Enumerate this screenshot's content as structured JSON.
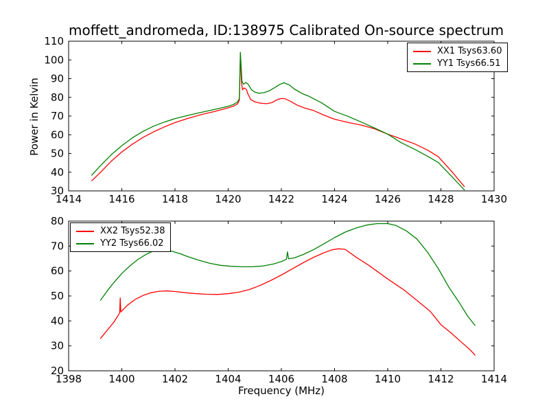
{
  "title": "moffett_andromeda, ID:138975 Calibrated On-source spectrum",
  "colors": {
    "xx_line": "#ff0000",
    "yy_line": "#008000",
    "frame": "#000000",
    "background": "#ffffff"
  },
  "chart_data": [
    {
      "type": "line",
      "title": "",
      "xlabel": "",
      "ylabel": "Power in Kelvin",
      "xlim": [
        1414,
        1430
      ],
      "ylim": [
        30,
        110
      ],
      "xticks": [
        1414,
        1416,
        1418,
        1420,
        1422,
        1424,
        1426,
        1428,
        1430
      ],
      "yticks": [
        30,
        40,
        50,
        60,
        70,
        80,
        90,
        100,
        110
      ],
      "grid": false,
      "legend_position": "upper right",
      "series": [
        {
          "name": "XX1 Tsys63.60",
          "color": "#ff0000",
          "points": [
            [
              1414.87,
              35.4
            ],
            [
              1415.2,
              40.0
            ],
            [
              1415.6,
              45.8
            ],
            [
              1416.0,
              50.8
            ],
            [
              1416.4,
              55.0
            ],
            [
              1416.8,
              58.6
            ],
            [
              1417.2,
              61.6
            ],
            [
              1417.6,
              64.2
            ],
            [
              1418.0,
              66.5
            ],
            [
              1418.5,
              68.8
            ],
            [
              1419.0,
              70.8
            ],
            [
              1419.5,
              72.5
            ],
            [
              1420.0,
              74.4
            ],
            [
              1420.2,
              75.3
            ],
            [
              1420.35,
              76.5
            ],
            [
              1420.42,
              78.5
            ],
            [
              1420.46,
              103.5
            ],
            [
              1420.5,
              88.0
            ],
            [
              1420.54,
              84.0
            ],
            [
              1420.6,
              85.0
            ],
            [
              1420.68,
              84.3
            ],
            [
              1420.75,
              81.5
            ],
            [
              1420.85,
              78.8
            ],
            [
              1421.0,
              77.6
            ],
            [
              1421.2,
              76.9
            ],
            [
              1421.45,
              76.6
            ],
            [
              1421.65,
              77.2
            ],
            [
              1421.85,
              78.8
            ],
            [
              1422.0,
              79.4
            ],
            [
              1422.15,
              79.2
            ],
            [
              1422.35,
              77.8
            ],
            [
              1422.6,
              75.8
            ],
            [
              1422.9,
              74.2
            ],
            [
              1423.2,
              73.0
            ],
            [
              1423.6,
              70.5
            ],
            [
              1424.0,
              68.3
            ],
            [
              1424.5,
              66.6
            ],
            [
              1425.0,
              65.2
            ],
            [
              1425.5,
              63.2
            ],
            [
              1426.0,
              60.3
            ],
            [
              1426.5,
              57.8
            ],
            [
              1427.0,
              55.2
            ],
            [
              1427.5,
              51.8
            ],
            [
              1427.9,
              48.3
            ],
            [
              1428.4,
              40.5
            ],
            [
              1428.88,
              32.3
            ]
          ]
        },
        {
          "name": "YY1 Tsys66.51",
          "color": "#008000",
          "points": [
            [
              1414.87,
              38.4
            ],
            [
              1415.2,
              43.5
            ],
            [
              1415.6,
              49.3
            ],
            [
              1416.0,
              54.2
            ],
            [
              1416.4,
              58.4
            ],
            [
              1416.8,
              61.8
            ],
            [
              1417.2,
              64.6
            ],
            [
              1417.6,
              66.8
            ],
            [
              1418.0,
              68.6
            ],
            [
              1418.5,
              70.4
            ],
            [
              1419.0,
              72.0
            ],
            [
              1419.5,
              73.6
            ],
            [
              1420.0,
              75.2
            ],
            [
              1420.2,
              76.2
            ],
            [
              1420.35,
              77.5
            ],
            [
              1420.42,
              79.5
            ],
            [
              1420.46,
              104.0
            ],
            [
              1420.52,
              88.5
            ],
            [
              1420.58,
              87.0
            ],
            [
              1420.66,
              88.0
            ],
            [
              1420.75,
              87.0
            ],
            [
              1420.88,
              84.0
            ],
            [
              1421.0,
              82.8
            ],
            [
              1421.15,
              82.2
            ],
            [
              1421.35,
              82.5
            ],
            [
              1421.55,
              83.5
            ],
            [
              1421.75,
              85.2
            ],
            [
              1421.95,
              87.0
            ],
            [
              1422.1,
              87.8
            ],
            [
              1422.3,
              86.6
            ],
            [
              1422.5,
              84.3
            ],
            [
              1422.8,
              81.9
            ],
            [
              1423.0,
              80.8
            ],
            [
              1423.5,
              77.2
            ],
            [
              1424.0,
              72.5
            ],
            [
              1424.5,
              69.9
            ],
            [
              1425.0,
              66.8
            ],
            [
              1425.5,
              63.6
            ],
            [
              1426.0,
              60.3
            ],
            [
              1426.5,
              55.8
            ],
            [
              1427.0,
              52.3
            ],
            [
              1427.5,
              48.5
            ],
            [
              1427.9,
              45.2
            ],
            [
              1428.4,
              37.8
            ],
            [
              1428.88,
              30.5
            ]
          ]
        }
      ]
    },
    {
      "type": "line",
      "title": "",
      "xlabel": "Frequency (MHz)",
      "ylabel": "",
      "xlim": [
        1398,
        1414
      ],
      "ylim": [
        20,
        80
      ],
      "xticks": [
        1398,
        1400,
        1402,
        1404,
        1406,
        1408,
        1410,
        1412,
        1414
      ],
      "yticks": [
        20,
        30,
        40,
        50,
        60,
        70,
        80
      ],
      "grid": false,
      "legend_position": "upper left",
      "series": [
        {
          "name": "XX2 Tsys52.38",
          "color": "#ff0000",
          "points": [
            [
              1399.2,
              33.0
            ],
            [
              1399.45,
              36.2
            ],
            [
              1399.7,
              39.5
            ],
            [
              1399.92,
              43.2
            ],
            [
              1399.94,
              49.2
            ],
            [
              1399.96,
              43.6
            ],
            [
              1400.2,
              46.2
            ],
            [
              1400.5,
              48.6
            ],
            [
              1400.8,
              50.2
            ],
            [
              1401.1,
              51.3
            ],
            [
              1401.4,
              51.9
            ],
            [
              1401.7,
              52.0
            ],
            [
              1402.0,
              51.8
            ],
            [
              1402.4,
              51.3
            ],
            [
              1402.8,
              50.9
            ],
            [
              1403.2,
              50.7
            ],
            [
              1403.6,
              50.6
            ],
            [
              1404.0,
              50.9
            ],
            [
              1404.4,
              51.5
            ],
            [
              1404.8,
              52.6
            ],
            [
              1405.2,
              54.2
            ],
            [
              1405.6,
              56.2
            ],
            [
              1406.0,
              58.4
            ],
            [
              1406.4,
              60.8
            ],
            [
              1406.8,
              63.2
            ],
            [
              1407.2,
              65.4
            ],
            [
              1407.6,
              67.3
            ],
            [
              1407.9,
              68.5
            ],
            [
              1408.15,
              68.9
            ],
            [
              1408.4,
              68.7
            ],
            [
              1408.8,
              65.6
            ],
            [
              1409.3,
              62.2
            ],
            [
              1410.0,
              56.8
            ],
            [
              1410.6,
              52.5
            ],
            [
              1411.1,
              48.2
            ],
            [
              1411.6,
              43.8
            ],
            [
              1412.0,
              38.5
            ],
            [
              1412.4,
              35.0
            ],
            [
              1412.8,
              31.2
            ],
            [
              1413.1,
              28.4
            ],
            [
              1413.28,
              26.3
            ]
          ]
        },
        {
          "name": "YY2 Tsys66.02",
          "color": "#008000",
          "points": [
            [
              1399.2,
              48.3
            ],
            [
              1399.45,
              52.0
            ],
            [
              1399.7,
              55.4
            ],
            [
              1400.0,
              59.0
            ],
            [
              1400.3,
              62.0
            ],
            [
              1400.6,
              64.6
            ],
            [
              1400.9,
              66.6
            ],
            [
              1401.15,
              67.9
            ],
            [
              1401.4,
              68.6
            ],
            [
              1401.65,
              68.5
            ],
            [
              1401.9,
              67.9
            ],
            [
              1402.2,
              66.9
            ],
            [
              1402.5,
              65.7
            ],
            [
              1402.9,
              64.3
            ],
            [
              1403.3,
              63.1
            ],
            [
              1403.7,
              62.3
            ],
            [
              1404.1,
              61.9
            ],
            [
              1404.5,
              61.7
            ],
            [
              1404.9,
              61.7
            ],
            [
              1405.3,
              62.0
            ],
            [
              1405.7,
              62.8
            ],
            [
              1406.0,
              63.8
            ],
            [
              1406.15,
              64.5
            ],
            [
              1406.19,
              64.7
            ],
            [
              1406.23,
              67.7
            ],
            [
              1406.27,
              64.9
            ],
            [
              1406.5,
              65.3
            ],
            [
              1406.8,
              66.5
            ],
            [
              1407.2,
              68.5
            ],
            [
              1407.6,
              70.9
            ],
            [
              1408.0,
              73.4
            ],
            [
              1408.4,
              75.6
            ],
            [
              1408.8,
              77.2
            ],
            [
              1409.2,
              78.4
            ],
            [
              1409.6,
              79.0
            ],
            [
              1410.0,
              79.0
            ],
            [
              1410.3,
              78.3
            ],
            [
              1410.7,
              76.1
            ],
            [
              1411.1,
              72.8
            ],
            [
              1411.5,
              67.5
            ],
            [
              1411.9,
              61.0
            ],
            [
              1412.3,
              53.5
            ],
            [
              1412.7,
              47.2
            ],
            [
              1413.0,
              42.0
            ],
            [
              1413.28,
              38.2
            ]
          ]
        }
      ]
    }
  ]
}
